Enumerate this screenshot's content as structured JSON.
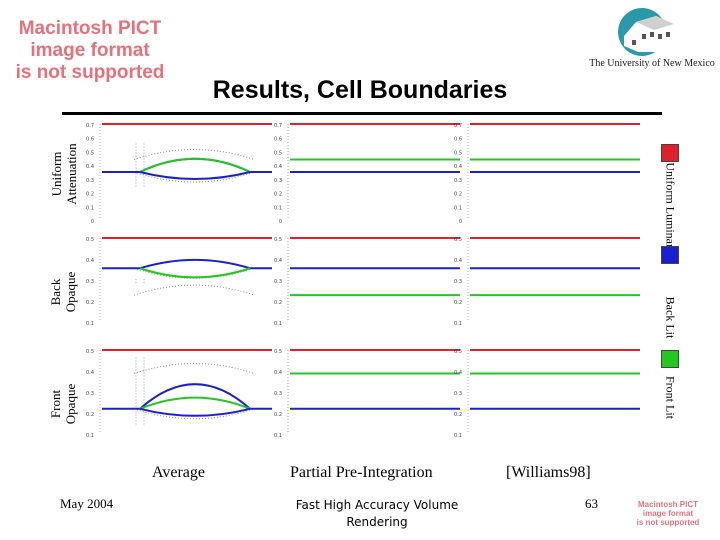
{
  "header": {
    "pict_placeholder_lines": [
      "Macintosh PICT",
      "image format",
      "is not supported"
    ],
    "title": "Results, Cell Boundaries",
    "university": "The University of New Mexico"
  },
  "rows": [
    {
      "label_line1": "Uniform",
      "label_line2": "Attenuation"
    },
    {
      "label_line1": "Back",
      "label_line2": "Opaque"
    },
    {
      "label_line1": "Front",
      "label_line2": "Opaque"
    }
  ],
  "legend": [
    {
      "label": "Uniform Luminance",
      "color": "#e0202a"
    },
    {
      "label": "Back Lit",
      "color": "#1a20d0"
    },
    {
      "label": "Front Lit",
      "color": "#22c81e"
    }
  ],
  "columns": [
    "Average",
    "Partial Pre-Integration",
    "[Williams98]"
  ],
  "colors": {
    "red": "#e0202a",
    "blue": "#1a20d0",
    "green": "#22c81e"
  },
  "plot_ticks": {
    "row1": [
      "0.7",
      "0.6",
      "0.5",
      "0.4",
      "0.3",
      "0.2",
      "0.1",
      "0"
    ],
    "row2": [
      "0.5",
      "0.4",
      "0.3",
      "0.2",
      "0.1"
    ],
    "row3": [
      "0.5",
      "0.4",
      "0.3",
      "0.2",
      "0.1"
    ]
  },
  "footer": {
    "date": "May 2004",
    "center_line1": "Fast High Accuracy Volume",
    "center_line2": "Rendering",
    "page": "63",
    "pict_small_lines": [
      "Macintosh PICT",
      "image format",
      "is not supported"
    ]
  }
}
